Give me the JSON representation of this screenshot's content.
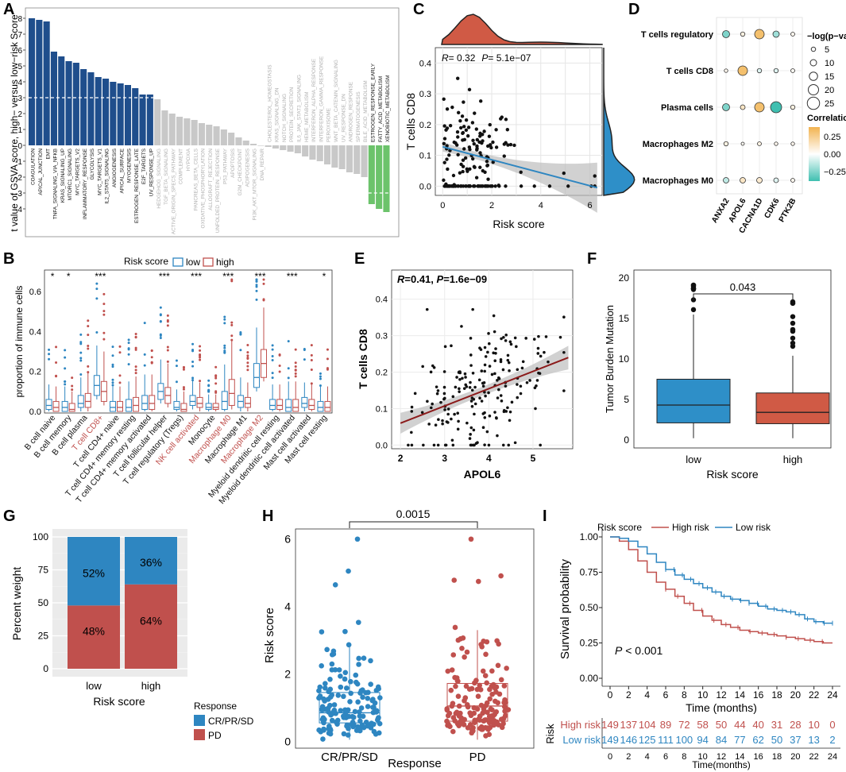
{
  "colors": {
    "navy": "#1f4e8c",
    "grey_bar": "#c8c8c8",
    "green_bar": "#6cc36b",
    "red": "#c0504d",
    "blue": "#2e86c1",
    "red_hist": "#d05a45",
    "blue_hist": "#2e8fc8",
    "corr_pos": "#f2b350",
    "corr_neg": "#3fbfb0",
    "dark_red": "#8b1a1a"
  },
  "panels": {
    "A": {
      "label": "A",
      "ylabel": "t value of GSVA score, high− versus low−risk Score",
      "yticks": [
        "8",
        "7",
        "6",
        "5",
        "4",
        "3",
        "2",
        "1",
        "0",
        "-1",
        "-2",
        "-3",
        "-4"
      ],
      "threshold_pos": 3,
      "threshold_neg": -3
    },
    "B": {
      "label": "B",
      "legend_title": "Risk score",
      "legend_low": "low",
      "legend_high": "high",
      "ylabel": "proportion of immune cells",
      "yticks": [
        "0.0",
        "0.2",
        "0.4",
        "0.6"
      ],
      "sig": [
        "*",
        "*",
        "",
        "***",
        "",
        "",
        "",
        "***",
        "",
        "***",
        "",
        "***",
        "",
        "***",
        "",
        "***",
        "",
        "*"
      ]
    },
    "C": {
      "label": "C",
      "stat_r": "R",
      "stat_r_val": "= 0.32",
      "stat_p": "P",
      "stat_p_val": "= 5.1e−07",
      "ylabel": "T cells CD8",
      "xlabel": "Risk score",
      "yticks": [
        "0.0",
        "0.1",
        "0.2",
        "0.3",
        "0.4"
      ],
      "xticks": [
        "0",
        "2",
        "4",
        "6"
      ]
    },
    "D": {
      "label": "D",
      "rows": [
        "T cells regulatory",
        "T cells CD8",
        "Plasma cells",
        "Macrophages M2",
        "Macrophages M0"
      ],
      "cols": [
        "ANXA2",
        "APOL6",
        "CACNA1D",
        "CDK6",
        "PTK2B"
      ],
      "size_title": "−log(p−value)",
      "size_vals": [
        "5",
        "10",
        "15",
        "20",
        "25"
      ],
      "corr_title": "Correlation",
      "corr_ticks": [
        "0.25",
        "0.00",
        "−0.25"
      ]
    },
    "E": {
      "label": "E",
      "stat_r": "R",
      "stat_r_val": "=0.41, ",
      "stat_p": "P",
      "stat_p_val": "=1.6e−09",
      "ylabel": "T cells CD8",
      "xlabel": "APOL6",
      "yticks": [
        "0.0",
        "0.1",
        "0.2",
        "0.3",
        "0.4"
      ],
      "xticks": [
        "2",
        "3",
        "4",
        "5"
      ]
    },
    "F": {
      "label": "F",
      "ylabel": "Tumor Burden Mutation",
      "xlabel": "Risk score",
      "pval": "0.043",
      "yticks": [
        "0",
        "5",
        "10",
        "15",
        "20"
      ],
      "cats": [
        "low",
        "high"
      ]
    },
    "G": {
      "label": "G",
      "ylabel": "Percent weight",
      "xlabel": "Risk score",
      "yticks": [
        "0",
        "25",
        "50",
        "75",
        "100"
      ],
      "legend_title": "Response",
      "legend_items": [
        "CR/PR/SD",
        "PD"
      ]
    },
    "H": {
      "label": "H",
      "ylabel": "Risk score",
      "xlabel": "Response",
      "pval": "0.0015",
      "yticks": [
        "0",
        "2",
        "4",
        "6"
      ],
      "cats": [
        "CR/PR/SD",
        "PD"
      ]
    },
    "I": {
      "label": "I",
      "legend_title": "Risk score",
      "legend_high": "High risk",
      "legend_low": "Low risk",
      "ylabel": "Survival probability",
      "xlabel": "Time (months)",
      "pval_label": "P",
      "pval_val": " < 0.001",
      "yticks": [
        "0.00",
        "0.25",
        "0.50",
        "0.75",
        "1.00"
      ],
      "xticks": [
        "0",
        "2",
        "4",
        "6",
        "8",
        "10",
        "12",
        "14",
        "16",
        "18",
        "20",
        "22",
        "24"
      ],
      "risk_label": "Risk",
      "risk_rows": [
        {
          "name": "High risk",
          "values": [
            "149",
            "137",
            "104",
            "89",
            "72",
            "58",
            "50",
            "44",
            "40",
            "31",
            "28",
            "10",
            "0"
          ]
        },
        {
          "name": "Low risk",
          "values": [
            "149",
            "146",
            "125",
            "111",
            "100",
            "94",
            "84",
            "77",
            "62",
            "50",
            "37",
            "13",
            "2"
          ]
        }
      ],
      "table_xlabel": "Time(months)"
    }
  },
  "chart_data": [
    {
      "panel": "A",
      "type": "bar",
      "ylabel": "t value of GSVA score, high− versus low−risk Score",
      "ylim": [
        -4.5,
        8.5
      ],
      "categories": [
        "COAGULATION",
        "APICAL_JUNCTION",
        "EMT",
        "TNFA_SIGNALING_VIA_NFKB",
        "KRAS_SIGNALING_UP",
        "MTORC1_SIGNALING",
        "MYC_TARGETS_V2",
        "INFLAMMATORY_RESPONSE",
        "GLYCOLYSIS",
        "MYC_TARGETS_V1",
        "IL2_STAT5_SIGNALING",
        "ANGIOGENESIS",
        "APICAL_SURFACE",
        "MYOGENESIS",
        "ESTROGEN_RESPONSE_LATE",
        "E2F_TARGETS",
        "UV_RESPONSE_UP",
        "HEDGEHOG_SIGNALING",
        "TGF_BETA_SIGNALING",
        "ACTIVE_ORIGIN_SPECS_PATHWAY",
        "COMPLEMENT",
        "HYPOXIA",
        "PANCREAS_BETA_CELLS",
        "OXIDATIVE_PHOSPHORYLATION",
        "ALLOGRAFT_REJECTION",
        "UNFOLDED_PROTEIN_RESPONSE",
        "P53_PATHWAY",
        "APOPTOSIS",
        "G2M_CHECKPOINT",
        "ADIPOGENESIS",
        "PI3K_AKT_MTOR_SIGNALING",
        "DNA_REPAIR",
        "CHOLESTEROL_HOMEOSTASIS",
        "KRAS_SIGNALING_DN",
        "NOTCH_SIGNALING",
        "PROTEIN_SECRETION",
        "IL6_JAK_STAT3_SIGNALING",
        "HEME_METABOLISM",
        "INTERFERON_ALPHA_RESPONSE",
        "INTERFERON_GAMMA_RESPONSE",
        "PEROXISOME",
        "WNT_BETA_CATENIN_SIGNALING",
        "UV_RESPONSE_DN",
        "ANDROGEN_RESPONSE",
        "SPERMATOGENESIS",
        "BILE_ACID_METABOLISM",
        "ESTROGEN_RESPONSE_EARLY",
        "FATTY_ACID_METABOLISM",
        "XENOBIOTIC_METABOLISM"
      ],
      "values": [
        8.0,
        7.9,
        7.8,
        5.9,
        5.6,
        5.3,
        5.2,
        4.8,
        4.6,
        4.3,
        4.2,
        4.0,
        3.9,
        3.8,
        3.6,
        3.2,
        3.2,
        2.9,
        2.2,
        2.0,
        1.8,
        1.7,
        1.6,
        1.4,
        1.3,
        1.2,
        1.0,
        0.8,
        0.5,
        0.3,
        0.1,
        0.0,
        -0.1,
        -0.2,
        -0.3,
        -0.4,
        -0.5,
        -0.7,
        -0.9,
        -1.0,
        -1.2,
        -1.4,
        -1.5,
        -1.7,
        -1.8,
        -2.0,
        -3.7,
        -4.0,
        -4.2
      ],
      "threshold": 3
    },
    {
      "panel": "B",
      "type": "boxplot",
      "ylabel": "proportion of immune cells",
      "ylim": [
        0,
        0.7
      ],
      "categories": [
        "B cell naive",
        "B cell memory",
        "B cell plasma",
        "T cell CD8+",
        "T cell CD4+ naive",
        "T cell CD4+ memory resting",
        "T cell CD4+ memory activated",
        "T cell follicular helper",
        "T cell regulatory (Tregs)",
        "NK cell activated",
        "Monocyte",
        "Macrophage M0",
        "Macrophage M1",
        "Macrophage M2",
        "Myeloid dendritic cell resting",
        "Myeloid dendritic cell activated",
        "Mast cell activated",
        "Mast cell resting"
      ],
      "highlight": [
        "T cell CD8+",
        "NK cell activated",
        "Macrophage M0",
        "Macrophage M2"
      ],
      "series": [
        {
          "name": "low",
          "medians": [
            0.03,
            0.02,
            0.04,
            0.13,
            0.02,
            0.02,
            0.04,
            0.1,
            0.02,
            0.05,
            0.02,
            0.05,
            0.05,
            0.17,
            0.03,
            0.02,
            0.04,
            0.02
          ],
          "q1": [
            0.01,
            0.0,
            0.02,
            0.08,
            0.0,
            0.0,
            0.01,
            0.06,
            0.01,
            0.03,
            0.01,
            0.01,
            0.02,
            0.12,
            0.01,
            0.0,
            0.02,
            0.0
          ],
          "q3": [
            0.06,
            0.05,
            0.08,
            0.18,
            0.05,
            0.06,
            0.08,
            0.14,
            0.05,
            0.08,
            0.04,
            0.1,
            0.08,
            0.24,
            0.06,
            0.06,
            0.07,
            0.05
          ]
        },
        {
          "name": "high",
          "medians": [
            0.02,
            0.01,
            0.05,
            0.1,
            0.02,
            0.03,
            0.04,
            0.08,
            0.01,
            0.04,
            0.02,
            0.09,
            0.04,
            0.24,
            0.03,
            0.02,
            0.03,
            0.02
          ],
          "q1": [
            0.0,
            0.0,
            0.02,
            0.05,
            0.0,
            0.0,
            0.01,
            0.04,
            0.0,
            0.02,
            0.01,
            0.03,
            0.02,
            0.17,
            0.01,
            0.0,
            0.01,
            0.0
          ],
          "q3": [
            0.05,
            0.04,
            0.09,
            0.15,
            0.05,
            0.07,
            0.08,
            0.12,
            0.04,
            0.07,
            0.04,
            0.16,
            0.07,
            0.31,
            0.06,
            0.06,
            0.06,
            0.05
          ]
        }
      ]
    },
    {
      "panel": "C",
      "type": "scatter",
      "xlabel": "Risk score",
      "ylabel": "T cells CD8",
      "xlim": [
        -0.3,
        6.5
      ],
      "ylim": [
        -0.03,
        0.45
      ],
      "r": 0.32,
      "p": "5.1e-07",
      "fit": {
        "x0": 0,
        "y0": 0.128,
        "x1": 6.3,
        "y1": -0.005
      }
    },
    {
      "panel": "D",
      "type": "bubble",
      "rows": [
        "T cells regulatory",
        "T cells CD8",
        "Plasma cells",
        "Macrophages M2",
        "Macrophages M0"
      ],
      "cols": [
        "ANXA2",
        "APOL6",
        "CACNA1D",
        "CDK6",
        "PTK2B"
      ],
      "size": [
        [
          12,
          5,
          18,
          10,
          4
        ],
        [
          3,
          18,
          5,
          5,
          4
        ],
        [
          12,
          6,
          18,
          22,
          5
        ],
        [
          5,
          2,
          4,
          3,
          3
        ],
        [
          8,
          8,
          8,
          6,
          4
        ]
      ],
      "corr": [
        [
          -0.2,
          0.05,
          0.25,
          -0.15,
          0.03
        ],
        [
          0.03,
          0.25,
          -0.05,
          -0.05,
          0.02
        ],
        [
          -0.2,
          0.1,
          0.25,
          -0.3,
          0.05
        ],
        [
          0.05,
          0.02,
          0.05,
          0.03,
          0.03
        ],
        [
          -0.1,
          0.1,
          0.08,
          -0.05,
          0.03
        ]
      ]
    },
    {
      "panel": "E",
      "type": "scatter",
      "xlabel": "APOL6",
      "ylabel": "T cells CD8",
      "xlim": [
        1.8,
        5.9
      ],
      "ylim": [
        -0.01,
        0.48
      ],
      "r": 0.41,
      "p": "1.6e-09",
      "fit": {
        "x0": 2.0,
        "y0": 0.06,
        "x1": 5.8,
        "y1": 0.24
      }
    },
    {
      "panel": "F",
      "type": "boxplot",
      "xlabel": "Risk score",
      "ylabel": "Tumor Burden Mutation",
      "ylim": [
        -1,
        21
      ],
      "categories": [
        "low",
        "high"
      ],
      "q1": [
        2.1,
        2.0
      ],
      "median": [
        4.3,
        3.4
      ],
      "q3": [
        7.5,
        5.8
      ],
      "whisker_low": [
        0.2,
        0.2
      ],
      "whisker_high": [
        15.5,
        10.4
      ],
      "pval": 0.043
    },
    {
      "panel": "G",
      "type": "stacked_bar",
      "xlabel": "Risk score",
      "ylabel": "Percent weight",
      "categories": [
        "low",
        "high"
      ],
      "series": [
        {
          "name": "CR/PR/SD",
          "values": [
            52,
            36
          ],
          "labels": [
            "52%",
            "36%"
          ]
        },
        {
          "name": "PD",
          "values": [
            48,
            64
          ],
          "labels": [
            "48%",
            "64%"
          ]
        }
      ]
    },
    {
      "panel": "H",
      "type": "boxplot",
      "xlabel": "Response",
      "ylabel": "Risk score",
      "ylim": [
        -0.2,
        6.3
      ],
      "categories": [
        "CR/PR/SD",
        "PD"
      ],
      "q1": [
        0.55,
        0.6
      ],
      "median": [
        0.85,
        1.05
      ],
      "q3": [
        1.45,
        1.72
      ],
      "whisker_low": [
        0.05,
        0.05
      ],
      "whisker_high": [
        2.9,
        3.3
      ],
      "pval": 0.0015
    },
    {
      "panel": "I",
      "type": "line",
      "xlabel": "Time (months)",
      "ylabel": "Survival probability",
      "xlim": [
        0,
        24
      ],
      "ylim": [
        0,
        1
      ],
      "x": [
        0,
        1,
        2,
        3,
        4,
        5,
        6,
        7,
        8,
        9,
        10,
        11,
        12,
        13,
        14,
        15,
        16,
        17,
        18,
        19,
        20,
        21,
        22,
        23,
        24
      ],
      "series": [
        {
          "name": "High risk",
          "values": [
            1.0,
            0.97,
            0.91,
            0.83,
            0.75,
            0.68,
            0.63,
            0.58,
            0.53,
            0.48,
            0.44,
            0.41,
            0.38,
            0.36,
            0.34,
            0.33,
            0.32,
            0.31,
            0.3,
            0.29,
            0.28,
            0.27,
            0.26,
            0.25,
            0.25
          ]
        },
        {
          "name": "Low risk",
          "values": [
            1.0,
            0.99,
            0.97,
            0.93,
            0.88,
            0.82,
            0.77,
            0.73,
            0.7,
            0.67,
            0.64,
            0.61,
            0.58,
            0.56,
            0.55,
            0.53,
            0.51,
            0.49,
            0.48,
            0.47,
            0.45,
            0.42,
            0.4,
            0.39,
            0.39
          ]
        }
      ],
      "pval": "< 0.001"
    }
  ]
}
